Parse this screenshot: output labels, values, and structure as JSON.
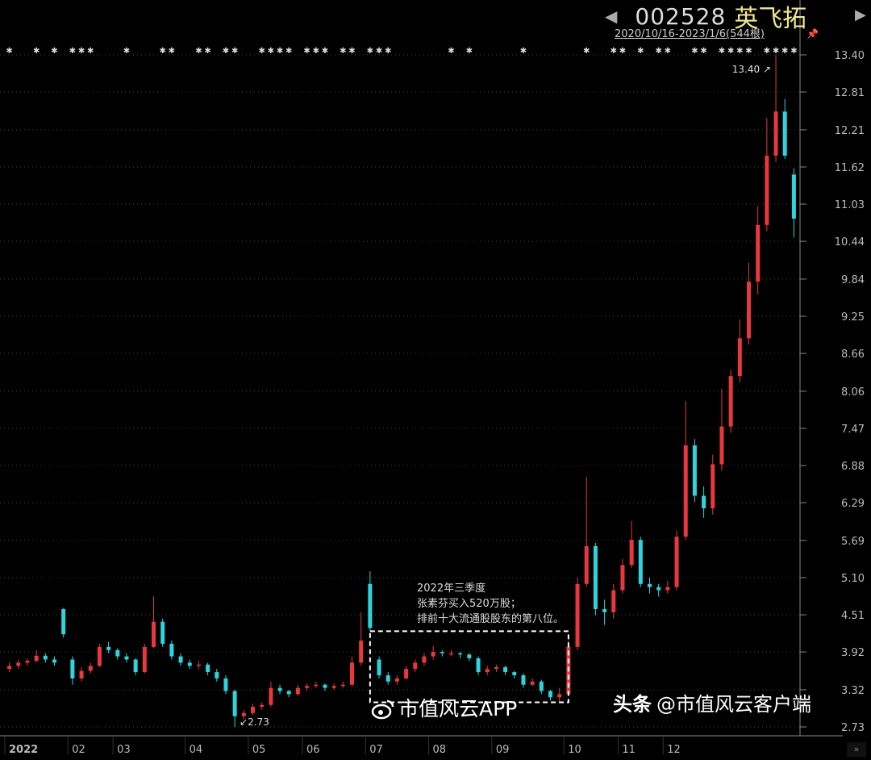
{
  "header": {
    "code": "002528",
    "name": "英飞拓",
    "range": "2020/10/16-2023/1/6(544根)",
    "prev_icon": "triangle-left-icon",
    "next_icon": "triangle-right-icon",
    "pin_icon": "pin-icon"
  },
  "annotation": {
    "line1": "2022年三季度",
    "line2": "张素芬买入520万股；",
    "line3": "排前十大流通股股东的第八位。"
  },
  "watermarks": {
    "weibo": "市值风云APP",
    "toutiao_brand": "头条",
    "toutiao_account": "@市值风云客户端"
  },
  "scroll_button": "»",
  "chart_data": {
    "type": "candlestick",
    "title": "",
    "y_ticks": [
      "13.40",
      "12.81",
      "12.21",
      "11.62",
      "11.03",
      "10.44",
      "9.84",
      "9.25",
      "8.66",
      "8.06",
      "7.47",
      "6.88",
      "6.29",
      "5.69",
      "5.10",
      "4.51",
      "3.92",
      "3.32",
      "2.73"
    ],
    "ylim": [
      2.73,
      13.4
    ],
    "grid": "dotted-horizontal",
    "colors": {
      "up": "#e8383d",
      "down": "#2fd3dc",
      "grid": "#444444",
      "axis": "#888888"
    },
    "max_label": "13.40",
    "min_label": "2.73",
    "candles_ohlc": [
      [
        3.65,
        3.75,
        3.6,
        3.7
      ],
      [
        3.7,
        3.8,
        3.65,
        3.75
      ],
      [
        3.75,
        3.82,
        3.7,
        3.78
      ],
      [
        3.78,
        3.95,
        3.75,
        3.86
      ],
      [
        3.86,
        3.9,
        3.75,
        3.8
      ],
      [
        3.8,
        3.85,
        3.7,
        3.75
      ],
      [
        4.6,
        4.62,
        4.15,
        4.2
      ],
      [
        3.8,
        3.85,
        3.4,
        3.5
      ],
      [
        3.5,
        3.68,
        3.45,
        3.62
      ],
      [
        3.62,
        3.75,
        3.58,
        3.7
      ],
      [
        3.7,
        4.05,
        3.68,
        4.0
      ],
      [
        4.0,
        4.08,
        3.9,
        3.95
      ],
      [
        3.95,
        3.98,
        3.8,
        3.85
      ],
      [
        3.85,
        3.9,
        3.75,
        3.8
      ],
      [
        3.8,
        3.82,
        3.55,
        3.6
      ],
      [
        3.6,
        4.05,
        3.58,
        4.0
      ],
      [
        4.0,
        4.8,
        3.98,
        4.4
      ],
      [
        4.4,
        4.45,
        4.0,
        4.05
      ],
      [
        4.05,
        4.1,
        3.8,
        3.85
      ],
      [
        3.85,
        3.9,
        3.7,
        3.75
      ],
      [
        3.75,
        3.8,
        3.65,
        3.7
      ],
      [
        3.7,
        3.78,
        3.65,
        3.72
      ],
      [
        3.72,
        3.75,
        3.55,
        3.6
      ],
      [
        3.6,
        3.65,
        3.45,
        3.5
      ],
      [
        3.5,
        3.55,
        3.25,
        3.3
      ],
      [
        3.3,
        3.32,
        2.73,
        2.9
      ],
      [
        2.9,
        3.0,
        2.85,
        2.95
      ],
      [
        2.95,
        3.1,
        2.92,
        3.05
      ],
      [
        3.05,
        3.12,
        3.0,
        3.08
      ],
      [
        3.08,
        3.45,
        3.05,
        3.35
      ],
      [
        3.35,
        3.4,
        3.25,
        3.3
      ],
      [
        3.3,
        3.32,
        3.2,
        3.25
      ],
      [
        3.25,
        3.4,
        3.22,
        3.35
      ],
      [
        3.35,
        3.42,
        3.3,
        3.38
      ],
      [
        3.38,
        3.45,
        3.35,
        3.4
      ],
      [
        3.4,
        3.42,
        3.3,
        3.35
      ],
      [
        3.35,
        3.42,
        3.32,
        3.38
      ],
      [
        3.38,
        3.45,
        3.35,
        3.4
      ],
      [
        3.4,
        3.85,
        3.38,
        3.75
      ],
      [
        3.75,
        4.55,
        3.7,
        4.1
      ],
      [
        5.0,
        5.2,
        4.25,
        4.3
      ],
      [
        3.8,
        3.85,
        3.5,
        3.55
      ],
      [
        3.55,
        3.6,
        3.4,
        3.45
      ],
      [
        3.45,
        3.55,
        3.4,
        3.5
      ],
      [
        3.5,
        3.7,
        3.48,
        3.65
      ],
      [
        3.65,
        3.8,
        3.6,
        3.75
      ],
      [
        3.75,
        3.9,
        3.7,
        3.85
      ],
      [
        3.85,
        4.02,
        3.8,
        3.92
      ],
      [
        3.92,
        3.95,
        3.85,
        3.9
      ],
      [
        3.9,
        3.95,
        3.85,
        3.9
      ],
      [
        3.9,
        3.92,
        3.82,
        3.88
      ],
      [
        3.88,
        3.9,
        3.78,
        3.82
      ],
      [
        3.82,
        3.85,
        3.55,
        3.6
      ],
      [
        3.6,
        3.7,
        3.55,
        3.65
      ],
      [
        3.65,
        3.72,
        3.6,
        3.68
      ],
      [
        3.68,
        3.7,
        3.55,
        3.6
      ],
      [
        3.6,
        3.62,
        3.5,
        3.55
      ],
      [
        3.55,
        3.58,
        3.35,
        3.4
      ],
      [
        3.4,
        3.5,
        3.38,
        3.45
      ],
      [
        3.45,
        3.48,
        3.25,
        3.3
      ],
      [
        3.3,
        3.32,
        3.15,
        3.2
      ],
      [
        3.2,
        3.35,
        3.12,
        3.25
      ],
      [
        3.25,
        4.1,
        3.22,
        4.0
      ],
      [
        4.0,
        5.1,
        3.95,
        5.0
      ],
      [
        5.0,
        6.7,
        4.95,
        5.6
      ],
      [
        5.6,
        5.65,
        4.5,
        4.6
      ],
      [
        4.6,
        4.75,
        4.35,
        4.55
      ],
      [
        4.55,
        5.0,
        4.45,
        4.9
      ],
      [
        4.9,
        5.4,
        4.85,
        5.3
      ],
      [
        5.3,
        6.0,
        5.25,
        5.7
      ],
      [
        5.7,
        5.75,
        4.95,
        5.0
      ],
      [
        5.0,
        5.1,
        4.85,
        4.95
      ],
      [
        4.95,
        5.0,
        4.8,
        4.9
      ],
      [
        4.9,
        5.05,
        4.85,
        4.95
      ],
      [
        4.95,
        5.85,
        4.9,
        5.75
      ],
      [
        5.75,
        7.9,
        5.7,
        7.2
      ],
      [
        7.2,
        7.3,
        6.3,
        6.4
      ],
      [
        6.4,
        6.55,
        6.05,
        6.2
      ],
      [
        6.2,
        7.05,
        6.1,
        6.9
      ],
      [
        6.9,
        8.1,
        6.8,
        7.5
      ],
      [
        7.5,
        8.4,
        7.4,
        8.3
      ],
      [
        8.3,
        9.2,
        8.2,
        8.9
      ],
      [
        8.9,
        10.1,
        8.8,
        9.8
      ],
      [
        9.8,
        11.0,
        9.6,
        10.7
      ],
      [
        10.7,
        12.4,
        10.6,
        11.8
      ],
      [
        11.8,
        13.4,
        11.7,
        12.5
      ],
      [
        12.5,
        12.7,
        11.75,
        11.8
      ],
      [
        11.5,
        11.6,
        10.5,
        10.8
      ]
    ],
    "x_labels": [
      {
        "label": "2022",
        "index": 0
      },
      {
        "label": "02",
        "index": 7
      },
      {
        "label": "03",
        "index": 12
      },
      {
        "label": "04",
        "index": 20
      },
      {
        "label": "05",
        "index": 27
      },
      {
        "label": "06",
        "index": 33
      },
      {
        "label": "07",
        "index": 40
      },
      {
        "label": "08",
        "index": 47
      },
      {
        "label": "09",
        "index": 54
      },
      {
        "label": "10",
        "index": 62
      },
      {
        "label": "11",
        "index": 68
      },
      {
        "label": "12",
        "index": 73
      }
    ],
    "highlight_box": {
      "from_index": 41,
      "to_index": 61
    },
    "marker_glyph": "✱",
    "marker_indexes": [
      0,
      3,
      5,
      7,
      8,
      9,
      13,
      17,
      18,
      21,
      22,
      24,
      25,
      28,
      29,
      30,
      31,
      33,
      34,
      35,
      37,
      38,
      40,
      41,
      42,
      49,
      51,
      57,
      64,
      67,
      68,
      70,
      72,
      73,
      76,
      77,
      79,
      80,
      81,
      82,
      84,
      85,
      86,
      87
    ]
  }
}
